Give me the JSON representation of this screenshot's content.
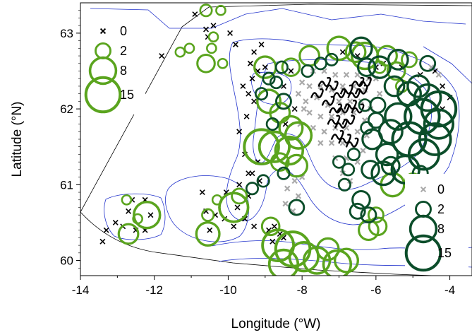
{
  "chart_data": {
    "type": "scatter",
    "xlabel": "Longitude (°W)",
    "ylabel": "Latitude (°N)",
    "xlim": [
      -14,
      -3.4
    ],
    "ylim": [
      59.8,
      63.4
    ],
    "x_ticks": [
      "-14",
      "-12",
      "-10",
      "-8",
      "-6",
      "-4"
    ],
    "y_ticks": [
      "60",
      "61",
      "62",
      "63"
    ],
    "legend_left": {
      "placement": "top-left",
      "entries": [
        {
          "label": "0",
          "marker": "x",
          "value": 0
        },
        {
          "label": "2",
          "marker": "circle",
          "value": 2
        },
        {
          "label": "8",
          "marker": "circle",
          "value": 8
        },
        {
          "label": "15",
          "marker": "circle",
          "value": 15
        }
      ]
    },
    "legend_right": {
      "placement": "bottom-right",
      "entries": [
        {
          "label": "0",
          "marker": "x",
          "value": 0
        },
        {
          "label": "2",
          "marker": "circle",
          "value": 2
        },
        {
          "label": "8",
          "marker": "circle",
          "value": 8
        },
        {
          "label": "15",
          "marker": "circle",
          "value": 15
        }
      ]
    },
    "colors": {
      "light_green": "#5aa41e",
      "dark_green": "#0b4d2a",
      "black": "#000000",
      "grey": "#a9a9a9",
      "contour": "#2233cc"
    },
    "series": [
      {
        "marker": "x",
        "color": "#000000",
        "points": [
          [
            -10.9,
            63.25
          ],
          [
            -10.6,
            63.05
          ],
          [
            -9.95,
            63.0
          ],
          [
            -10.4,
            63.1
          ],
          [
            -11.8,
            62.7
          ],
          [
            -10.55,
            62.95
          ],
          [
            -9.8,
            62.85
          ],
          [
            -9.1,
            62.85
          ],
          [
            -9.3,
            62.75
          ],
          [
            -9.4,
            62.6
          ],
          [
            -9.2,
            62.5
          ],
          [
            -9.0,
            62.55
          ],
          [
            -9.35,
            62.4
          ],
          [
            -9.6,
            62.3
          ],
          [
            -9.45,
            62.2
          ],
          [
            -9.3,
            62.1
          ],
          [
            -9.5,
            61.9
          ],
          [
            -9.7,
            61.7
          ],
          [
            -9.55,
            61.4
          ],
          [
            -9.2,
            61.3
          ],
          [
            -9.35,
            61.15
          ],
          [
            -9.15,
            61.05
          ],
          [
            -9.45,
            61.15
          ],
          [
            -9.7,
            61.0
          ],
          [
            -9.45,
            60.85
          ],
          [
            -9.75,
            60.7
          ],
          [
            -9.55,
            60.55
          ],
          [
            -9.3,
            60.45
          ],
          [
            -8.9,
            60.4
          ],
          [
            -8.6,
            60.35
          ],
          [
            -8.8,
            60.25
          ],
          [
            -8.5,
            60.3
          ],
          [
            -8.75,
            60.45
          ],
          [
            -10.7,
            60.9
          ],
          [
            -10.6,
            60.65
          ],
          [
            -10.35,
            60.6
          ],
          [
            -10.5,
            60.4
          ],
          [
            -10.1,
            60.55
          ],
          [
            -10.05,
            60.9
          ],
          [
            -9.85,
            60.45
          ],
          [
            -13.3,
            60.4
          ],
          [
            -13.05,
            60.5
          ],
          [
            -12.7,
            60.65
          ],
          [
            -12.6,
            60.8
          ],
          [
            -12.25,
            60.8
          ],
          [
            -12.1,
            60.6
          ],
          [
            -12.25,
            60.4
          ],
          [
            -12.5,
            60.4
          ],
          [
            -13.4,
            60.25
          ],
          [
            -12.85,
            60.45
          ],
          [
            -6.0,
            62.55
          ],
          [
            -5.8,
            62.6
          ],
          [
            -5.3,
            62.55
          ],
          [
            -4.8,
            62.45
          ],
          [
            -4.4,
            62.5
          ],
          [
            -4.2,
            62.3
          ],
          [
            -4.0,
            62.15
          ],
          [
            -4.2,
            62.0
          ],
          [
            -6.9,
            62.75
          ],
          [
            -6.5,
            62.7
          ],
          [
            -8.3,
            62.5
          ],
          [
            -8.5,
            62.3
          ],
          [
            -8.2,
            62.0
          ],
          [
            -8.45,
            61.8
          ]
        ]
      },
      {
        "marker": "x",
        "color": "#a9a9a9",
        "points": [
          [
            -7.7,
            62.5
          ],
          [
            -7.4,
            62.5
          ],
          [
            -7.1,
            62.45
          ],
          [
            -6.8,
            62.45
          ],
          [
            -6.5,
            62.45
          ],
          [
            -6.2,
            62.4
          ],
          [
            -7.8,
            62.3
          ],
          [
            -7.5,
            62.3
          ],
          [
            -7.2,
            62.25
          ],
          [
            -6.9,
            62.3
          ],
          [
            -6.6,
            62.3
          ],
          [
            -6.3,
            62.25
          ],
          [
            -7.9,
            62.1
          ],
          [
            -7.6,
            62.15
          ],
          [
            -7.3,
            62.05
          ],
          [
            -7.0,
            62.1
          ],
          [
            -6.7,
            62.1
          ],
          [
            -6.4,
            62.1
          ],
          [
            -6.15,
            62.0
          ],
          [
            -7.8,
            61.95
          ],
          [
            -7.5,
            61.9
          ],
          [
            -7.2,
            61.9
          ],
          [
            -6.9,
            61.95
          ],
          [
            -6.6,
            61.95
          ],
          [
            -6.3,
            61.85
          ],
          [
            -7.7,
            61.75
          ],
          [
            -7.4,
            61.7
          ],
          [
            -7.1,
            61.75
          ],
          [
            -6.8,
            61.75
          ],
          [
            -6.5,
            61.7
          ],
          [
            -6.25,
            61.65
          ],
          [
            -7.5,
            61.55
          ],
          [
            -7.2,
            61.55
          ],
          [
            -6.9,
            61.55
          ],
          [
            -6.6,
            61.5
          ],
          [
            -6.35,
            61.45
          ],
          [
            -7.1,
            61.35
          ],
          [
            -6.8,
            61.35
          ],
          [
            -6.5,
            61.3
          ],
          [
            -6.9,
            61.15
          ],
          [
            -6.7,
            61.05
          ],
          [
            -8.2,
            61.05
          ],
          [
            -8.4,
            60.95
          ],
          [
            -8.1,
            60.85
          ],
          [
            -8.45,
            60.75
          ],
          [
            -8.25,
            60.65
          ],
          [
            -8.0,
            61.1
          ],
          [
            -8.0,
            62.35
          ],
          [
            -8.1,
            62.2
          ],
          [
            -7.95,
            62.0
          ],
          [
            -8.05,
            61.8
          ],
          [
            -6.0,
            62.4
          ],
          [
            -5.9,
            62.2
          ],
          [
            -4.5,
            62.55
          ],
          [
            -4.3,
            62.45
          ]
        ]
      },
      {
        "marker": "wiggle",
        "color": "#000000",
        "points": [
          [
            -7.4,
            62.35
          ],
          [
            -7.2,
            62.3
          ],
          [
            -7.0,
            62.2
          ],
          [
            -6.8,
            62.25
          ],
          [
            -6.6,
            62.2
          ],
          [
            -6.5,
            62.35
          ],
          [
            -7.3,
            62.1
          ],
          [
            -7.1,
            62.0
          ],
          [
            -6.9,
            62.0
          ],
          [
            -6.7,
            62.05
          ],
          [
            -6.5,
            62.0
          ],
          [
            -7.15,
            61.85
          ],
          [
            -6.95,
            61.8
          ],
          [
            -6.75,
            61.85
          ],
          [
            -7.05,
            61.65
          ],
          [
            -6.85,
            61.6
          ],
          [
            -6.65,
            61.55
          ],
          [
            -7.6,
            62.2
          ],
          [
            -6.4,
            62.25
          ],
          [
            -6.3,
            62.35
          ]
        ]
      },
      {
        "marker": "circle",
        "color": "#5aa41e",
        "points": [
          [
            -10.6,
            63.3,
            1
          ],
          [
            -10.2,
            63.3,
            0.5
          ],
          [
            -10.6,
            62.6,
            3
          ],
          [
            -10.15,
            62.6,
            0.5
          ],
          [
            -10.45,
            62.8,
            0.5
          ],
          [
            -11.3,
            62.75,
            0.5
          ],
          [
            -11.05,
            62.8,
            0.5
          ],
          [
            -10.4,
            62.95,
            0.5
          ],
          [
            -12.2,
            60.6,
            8
          ],
          [
            -12.7,
            60.35,
            4
          ],
          [
            -12.45,
            60.55,
            0.5
          ],
          [
            -12.75,
            60.8,
            0.5
          ],
          [
            -10.55,
            60.35,
            6
          ],
          [
            -10.55,
            60.6,
            1
          ],
          [
            -10.3,
            60.8,
            0.5
          ],
          [
            -9.85,
            60.7,
            10
          ],
          [
            -9.7,
            60.85,
            2
          ],
          [
            -9.1,
            61.5,
            15
          ],
          [
            -8.75,
            61.5,
            11
          ],
          [
            -8.35,
            61.45,
            9
          ],
          [
            -8.1,
            61.65,
            8
          ],
          [
            -8.15,
            61.25,
            5
          ],
          [
            -8.6,
            61.95,
            4
          ],
          [
            -8.9,
            62.1,
            6
          ],
          [
            -9.0,
            62.55,
            5
          ],
          [
            -8.3,
            62.55,
            3
          ],
          [
            -7.8,
            62.7,
            4
          ],
          [
            -7.0,
            62.8,
            6
          ],
          [
            -6.55,
            62.75,
            4
          ],
          [
            -6.3,
            62.7,
            8
          ],
          [
            -5.7,
            62.7,
            4
          ],
          [
            -5.1,
            62.65,
            2
          ],
          [
            -5.9,
            62.55,
            1
          ],
          [
            -5.45,
            62.5,
            3
          ],
          [
            -5.3,
            62.3,
            1
          ],
          [
            -8.65,
            60.2,
            12
          ],
          [
            -8.25,
            60.15,
            15
          ],
          [
            -8.5,
            59.95,
            10
          ],
          [
            -7.95,
            60.05,
            10
          ],
          [
            -7.6,
            60.0,
            8
          ],
          [
            -7.3,
            60.15,
            5
          ],
          [
            -7.05,
            59.95,
            9
          ],
          [
            -6.8,
            60.0,
            6
          ],
          [
            -8.85,
            60.45,
            3
          ],
          [
            -6.2,
            60.4,
            4
          ],
          [
            -5.95,
            60.45,
            3
          ],
          [
            -5.55,
            61.0,
            6
          ],
          [
            -5.0,
            61.05,
            2
          ],
          [
            -6.0,
            60.6,
            2
          ],
          [
            -8.6,
            61.3,
            3
          ],
          [
            -8.3,
            61.75,
            6
          ]
        ]
      },
      {
        "marker": "circle",
        "color": "#0b4d2a",
        "points": [
          [
            -4.3,
            62.0,
            15
          ],
          [
            -4.75,
            61.9,
            15
          ],
          [
            -4.4,
            61.6,
            12
          ],
          [
            -5.1,
            61.6,
            14
          ],
          [
            -4.7,
            61.4,
            11
          ],
          [
            -5.2,
            61.2,
            9
          ],
          [
            -4.3,
            61.8,
            10
          ],
          [
            -5.4,
            61.9,
            8
          ],
          [
            -5.6,
            61.7,
            6
          ],
          [
            -5.7,
            61.4,
            5
          ],
          [
            -5.1,
            62.2,
            6
          ],
          [
            -4.85,
            62.3,
            5
          ],
          [
            -4.6,
            62.15,
            8
          ],
          [
            -5.5,
            62.3,
            4
          ],
          [
            -5.9,
            62.55,
            5
          ],
          [
            -6.25,
            62.55,
            3
          ],
          [
            -6.4,
            62.8,
            5
          ],
          [
            -5.4,
            62.65,
            4
          ],
          [
            -4.6,
            62.6,
            2
          ],
          [
            -5.8,
            61.15,
            6
          ],
          [
            -5.6,
            61.25,
            3
          ],
          [
            -6.1,
            61.6,
            4
          ],
          [
            -6.15,
            61.2,
            3
          ],
          [
            -6.4,
            60.8,
            3
          ],
          [
            -6.2,
            60.6,
            2
          ],
          [
            -6.5,
            60.65,
            2
          ],
          [
            -8.5,
            62.1,
            2
          ],
          [
            -8.7,
            62.35,
            1
          ],
          [
            -8.9,
            62.4,
            1
          ],
          [
            -8.55,
            62.55,
            1
          ],
          [
            -8.8,
            61.8,
            1
          ],
          [
            -9.1,
            62.2,
            1
          ],
          [
            -8.15,
            60.7,
            2
          ],
          [
            -8.5,
            61.15,
            1
          ],
          [
            -9.05,
            61.05,
            1
          ],
          [
            -9.35,
            60.95,
            1
          ],
          [
            -7.2,
            62.65,
            1
          ],
          [
            -7.5,
            62.6,
            1
          ],
          [
            -7.85,
            62.5,
            1
          ],
          [
            -6.6,
            61.4,
            1
          ],
          [
            -6.75,
            61.2,
            1
          ],
          [
            -7.0,
            61.3,
            1
          ],
          [
            -6.85,
            61.0,
            1
          ],
          [
            -4.8,
            61.15,
            2
          ],
          [
            -6.0,
            61.85,
            2
          ],
          [
            -5.95,
            62.05,
            2
          ],
          [
            -6.3,
            62.05,
            1
          ],
          [
            -6.25,
            61.75,
            1
          ]
        ]
      }
    ]
  }
}
